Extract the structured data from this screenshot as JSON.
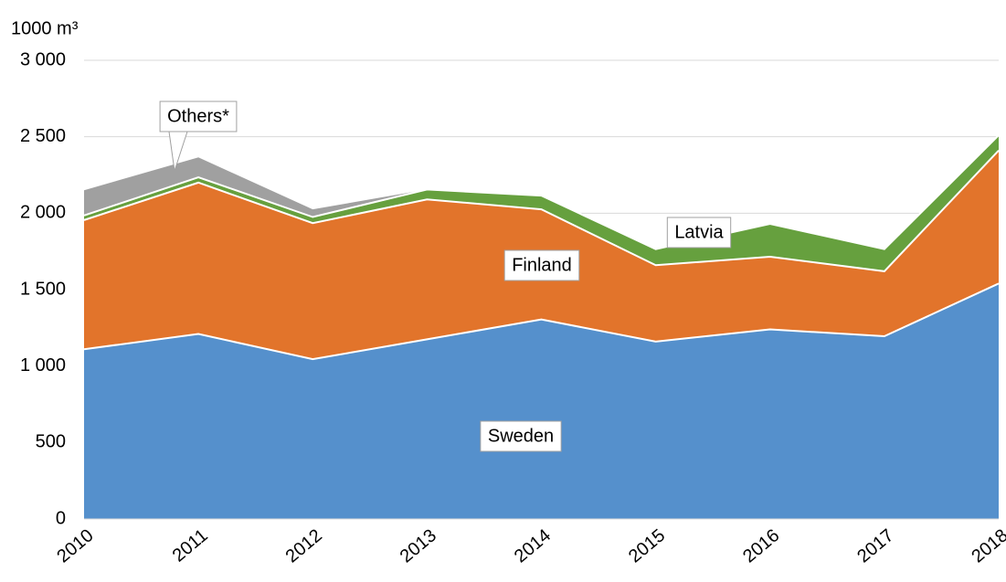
{
  "chart_data": {
    "type": "stacked_area",
    "y_axis_label": "1000 m³",
    "categories": [
      "2010",
      "2011",
      "2012",
      "2013",
      "2014",
      "2015",
      "2016",
      "2017",
      "2018"
    ],
    "series": [
      {
        "name": "Sweden",
        "color": "#5590cc",
        "values": [
          1110,
          1210,
          1045,
          1175,
          1305,
          1160,
          1240,
          1195,
          1540
        ]
      },
      {
        "name": "Finland",
        "color": "#e2742b",
        "values": [
          845,
          990,
          890,
          915,
          720,
          500,
          475,
          425,
          870
        ]
      },
      {
        "name": "Latvia",
        "color": "#66a03e",
        "values": [
          30,
          35,
          40,
          65,
          90,
          105,
          215,
          145,
          100
        ]
      },
      {
        "name": "Others*",
        "color": "#a0a0a0",
        "values": [
          165,
          130,
          50,
          0,
          0,
          0,
          0,
          0,
          0
        ]
      }
    ],
    "ylim": [
      0,
      3000
    ],
    "yticks": [
      0,
      500,
      {
        "value": 1000,
        "label": "1 000"
      },
      {
        "value": 1500,
        "label": "1 500"
      },
      {
        "value": 2000,
        "label": "2 000"
      },
      {
        "value": 2500,
        "label": "2 500"
      },
      {
        "value": 3000,
        "label": "3 000"
      }
    ],
    "grid": true
  }
}
